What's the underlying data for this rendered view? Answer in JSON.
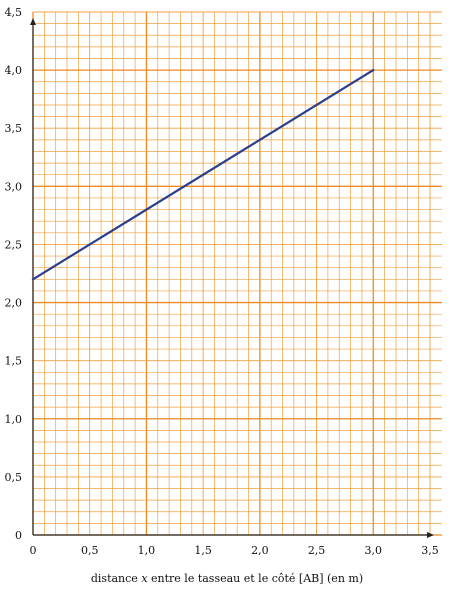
{
  "chart_data": {
    "type": "line",
    "title": "",
    "xlabel": "distance x entre le tasseau et le côté [AB] (en m)",
    "xlabel_parts": {
      "before": "distance ",
      "var": "x",
      "after": " entre le tasseau et le côté [AB] (en m)"
    },
    "ylabel": "",
    "xlim": [
      0,
      3.5
    ],
    "ylim": [
      0,
      4.5
    ],
    "x_ticks": [
      {
        "value": 0,
        "label": "0"
      },
      {
        "value": 0.5,
        "label": "0,5"
      },
      {
        "value": 1,
        "label": "1,0"
      },
      {
        "value": 1.5,
        "label": "1,5"
      },
      {
        "value": 2,
        "label": "2,0"
      },
      {
        "value": 2.5,
        "label": "2,5"
      },
      {
        "value": 3,
        "label": "3,0"
      },
      {
        "value": 3.5,
        "label": "3,5"
      }
    ],
    "y_ticks": [
      {
        "value": 0,
        "label": "0"
      },
      {
        "value": 0.5,
        "label": "0,5"
      },
      {
        "value": 1,
        "label": "1,0"
      },
      {
        "value": 1.5,
        "label": "1,5"
      },
      {
        "value": 2,
        "label": "2,0"
      },
      {
        "value": 2.5,
        "label": "2,5"
      },
      {
        "value": 3,
        "label": "3,0"
      },
      {
        "value": 3.5,
        "label": "3,5"
      },
      {
        "value": 4,
        "label": "4,0"
      },
      {
        "value": 4.5,
        "label": "4,5"
      }
    ],
    "minor_step_x": 0.1,
    "minor_step_y": 0.1,
    "major_step_x": 1,
    "major_step_y": 1,
    "grid": true,
    "series": [
      {
        "x": [
          0,
          3
        ],
        "y": [
          2.2,
          4.0
        ],
        "color": "#2a3f8f"
      }
    ],
    "colors": {
      "grid": "#f0a040",
      "grid_major": "#ee8a22",
      "axis": "#222222",
      "line": "#2a3f8f"
    }
  }
}
